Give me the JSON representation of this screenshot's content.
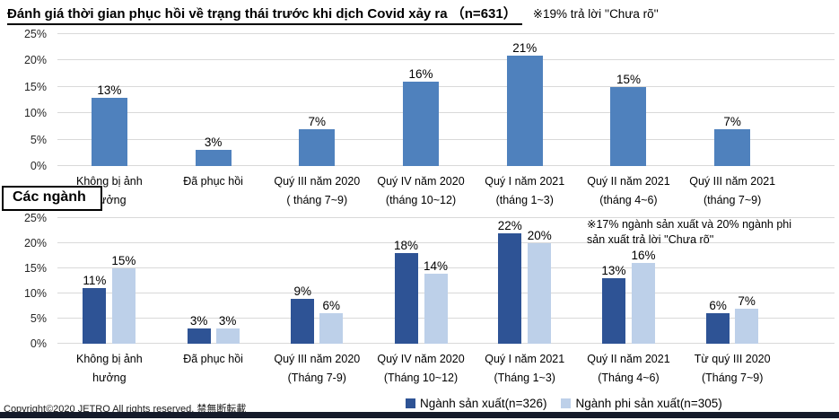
{
  "page": {
    "title": "Đánh giá thời gian phục hồi về trạng thái trước khi dịch Covid xảy ra （n=631）",
    "title_note": "※19% trả lời ''Chưa rõ''",
    "sector_box_label": "Các ngành",
    "copyright": "Copyright©2020 JETRO All rights reserved. 禁無断転載"
  },
  "colors": {
    "overall_bar": "#4F81BD",
    "manufacturing_bar": "#2E5395",
    "non_manufacturing_bar": "#BDD0E9",
    "gridline": "#D9D9D9",
    "footer_bar": "#141A2A"
  },
  "chart_data": [
    {
      "type": "bar",
      "categories": [
        "Không bị ảnh\nhưởng",
        "Đã phục hồi",
        "Quý III năm 2020\n( tháng 7~9)",
        "Quý IV năm 2020\n(tháng 10~12)",
        "Quý I năm 2021\n(tháng 1~3)",
        "Quý II năm 2021\n(tháng 4~6)",
        "Quý III năm 2021\n(tháng 7~9)"
      ],
      "values": [
        13,
        3,
        7,
        16,
        21,
        15,
        7
      ],
      "value_suffix": "%",
      "bar_color": "#4F81BD",
      "ylim": [
        0,
        25
      ],
      "ytick_step": 5,
      "grid": true,
      "legend_position": "none"
    },
    {
      "type": "bar",
      "categories": [
        "Không bị ảnh\nhưởng",
        "Đã phục hồi",
        "Quý III năm 2020\n(Tháng 7-9)",
        "Quý IV năm 2020\n(Tháng 10~12)",
        "Quý I năm 2021\n(Tháng 1~3)",
        "Quý II năm 2021\n(Tháng 4~6)",
        "Từ quý III 2020\n(Tháng 7~9)"
      ],
      "series": [
        {
          "name": "Ngành sản xuất(n=326)",
          "color": "#2E5395",
          "values": [
            11,
            3,
            9,
            18,
            22,
            13,
            6
          ]
        },
        {
          "name": "Ngành phi sản xuất(n=305)",
          "color": "#BDD0E9",
          "values": [
            15,
            3,
            6,
            14,
            20,
            16,
            7
          ]
        }
      ],
      "value_suffix": "%",
      "ylim": [
        0,
        25
      ],
      "ytick_step": 5,
      "grid": true,
      "note": "※17% ngành sản xuất và 20% ngành phi\nsản xuất trả lời ''Chưa rõ''",
      "legend_position": "bottom"
    }
  ]
}
